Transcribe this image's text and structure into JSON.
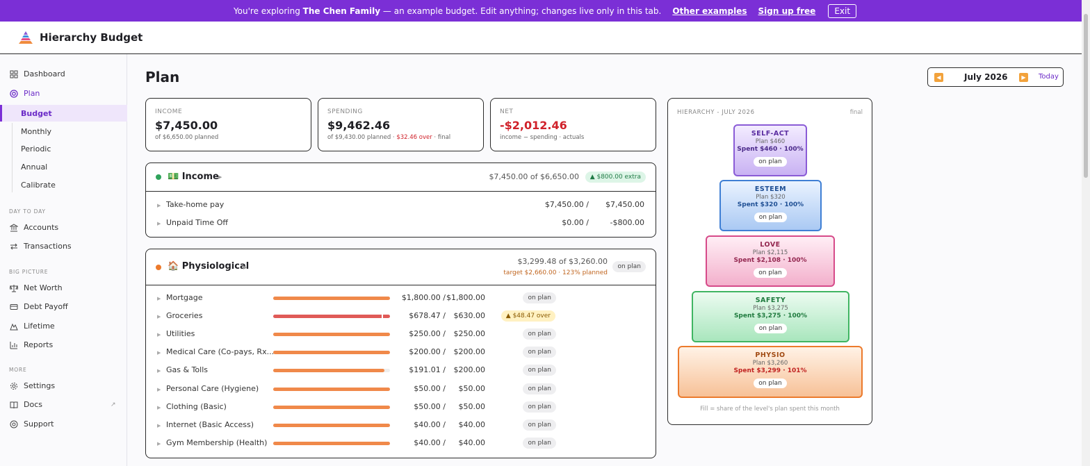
{
  "banner": {
    "prefix": "You're exploring",
    "family": "The Chen Family",
    "suffix": "— an example budget. Edit anything; changes live only in this tab.",
    "other_examples": "Other examples",
    "sign_up": "Sign up free",
    "exit": "Exit"
  },
  "app": {
    "name": "Hierarchy Budget"
  },
  "sidebar": {
    "dashboard": "Dashboard",
    "plan": "Plan",
    "plan_sub": [
      "Budget",
      "Monthly",
      "Periodic",
      "Annual",
      "Calibrate"
    ],
    "day_to_day_label": "DAY TO DAY",
    "accounts": "Accounts",
    "transactions": "Transactions",
    "big_picture_label": "BIG PICTURE",
    "net_worth": "Net Worth",
    "debt_payoff": "Debt Payoff",
    "lifetime": "Lifetime",
    "reports": "Reports",
    "more_label": "MORE",
    "settings": "Settings",
    "docs": "Docs",
    "support": "Support"
  },
  "page": {
    "title": "Plan"
  },
  "month_nav": {
    "label": "July 2026",
    "today": "Today"
  },
  "summary": {
    "income": {
      "label": "INCOME",
      "value": "$7,450.00",
      "sub": "of $6,650.00 planned"
    },
    "spending": {
      "label": "SPENDING",
      "value": "$9,462.46",
      "sub_a": "of $9,430.00 planned · ",
      "sub_over": "$32.46 over",
      "sub_b": " · final"
    },
    "net": {
      "label": "NET",
      "value": "-$2,012.46",
      "sub": "income − spending · actuals"
    }
  },
  "income_group": {
    "emoji": "💵",
    "title": "Income",
    "amount": "$7,450.00 of $6,650.00",
    "badge": "▲ $800.00 extra",
    "rows": [
      {
        "name": "Take-home pay",
        "actual": "$7,450.00 /",
        "plan": "$7,450.00"
      },
      {
        "name": "Unpaid Time Off",
        "actual": "$0.00 /",
        "plan": "-$800.00"
      }
    ]
  },
  "physio_group": {
    "emoji": "🏠",
    "title": "Physiological",
    "amount": "$3,299.48 of $3,260.00",
    "target": "target $2,660.00 · 123% planned",
    "badge": "on plan",
    "rows": [
      {
        "name": "Mortgage",
        "actual": "$1,800.00 /",
        "plan": "$1,800.00",
        "status": "on plan",
        "fill": 1.0,
        "over": false
      },
      {
        "name": "Groceries",
        "actual": "$678.47 /",
        "plan": "$630.00",
        "status": "▲ $48.47 over",
        "fill": 1.0,
        "over": true
      },
      {
        "name": "Utilities",
        "actual": "$250.00 /",
        "plan": "$250.00",
        "status": "on plan",
        "fill": 1.0,
        "over": false
      },
      {
        "name": "Medical Care (Co-pays, Rx...",
        "actual": "$200.00 /",
        "plan": "$200.00",
        "status": "on plan",
        "fill": 1.0,
        "over": false
      },
      {
        "name": "Gas & Tolls",
        "actual": "$191.01 /",
        "plan": "$200.00",
        "status": "on plan",
        "fill": 0.955,
        "over": false
      },
      {
        "name": "Personal Care (Hygiene)",
        "actual": "$50.00 /",
        "plan": "$50.00",
        "status": "on plan",
        "fill": 1.0,
        "over": false
      },
      {
        "name": "Clothing (Basic)",
        "actual": "$50.00 /",
        "plan": "$50.00",
        "status": "on plan",
        "fill": 1.0,
        "over": false
      },
      {
        "name": "Internet (Basic Access)",
        "actual": "$40.00 /",
        "plan": "$40.00",
        "status": "on plan",
        "fill": 1.0,
        "over": false
      },
      {
        "name": "Gym Membership (Health)",
        "actual": "$40.00 /",
        "plan": "$40.00",
        "status": "on plan",
        "fill": 1.0,
        "over": false
      }
    ]
  },
  "hierarchy": {
    "title": "HIERARCHY - JULY 2026",
    "final": "final",
    "levels": [
      {
        "name": "SELF-ACT",
        "plan": "Plan $460",
        "spent": "Spent $460 · 100%",
        "badge": "on plan"
      },
      {
        "name": "ESTEEM",
        "plan": "Plan $320",
        "spent": "Spent $320 · 100%",
        "badge": "on plan"
      },
      {
        "name": "LOVE",
        "plan": "Plan $2,115",
        "spent": "Spent $2,108 · 100%",
        "badge": "on plan"
      },
      {
        "name": "SAFETY",
        "plan": "Plan $3,275",
        "spent": "Spent $3,275 · 100%",
        "badge": "on plan"
      },
      {
        "name": "PHYSIO",
        "plan": "Plan $3,260",
        "spent": "Spent $3,299 · 101%",
        "badge": "on plan"
      }
    ],
    "footnote": "Fill = share of the level's plan spent this month"
  },
  "colors": {
    "accent": "#7b2fd6",
    "bar": "#f0894a",
    "bar_over": "#e05a57",
    "income_dot": "#2fa35b",
    "physio_dot": "#ec7a2c"
  }
}
